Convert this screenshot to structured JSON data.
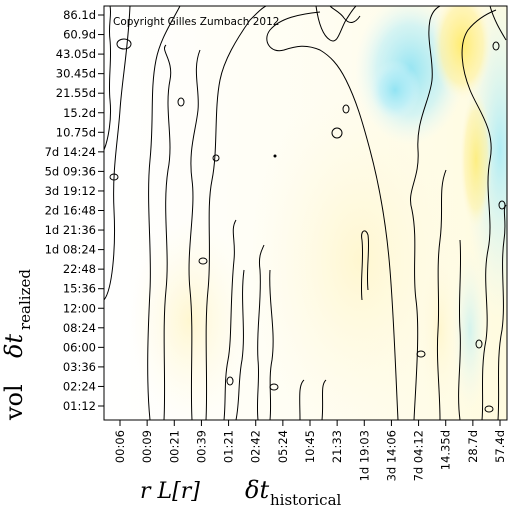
{
  "chart_data": {
    "type": "heatmap",
    "copyright": "Copyright Gilles Zumbach 2012",
    "y_ticks": [
      "86.1d",
      "60.9d",
      "43.05d",
      "30.45d",
      "21.55d",
      "15.2d",
      "10.75d",
      "7d 14:24",
      "5d 09:36",
      "3d 19:12",
      "2d 16:48",
      "1d 21:36",
      "1d 08:24",
      "22:48",
      "15:36",
      "12:00",
      "08:24",
      "06:00",
      "03:36",
      "02:24",
      "01:12"
    ],
    "x_ticks": [
      "00:06",
      "00:09",
      "00:21",
      "00:39",
      "01:21",
      "02:42",
      "05:24",
      "10:45",
      "21:33",
      "1d 19:03",
      "3d 14:06",
      "7d 04:12",
      "14.35d",
      "28.7d",
      "57.4d"
    ],
    "y_axis_title": {
      "main": "vol",
      "symbol": "δt",
      "subscript": "realized"
    },
    "x_axis_title": {
      "left": "r L[r]",
      "symbol": "δt",
      "subscript": "historical"
    },
    "colors": {
      "background": "#fffff4",
      "cream": "#fffbdc",
      "cyan": "#bff0f8",
      "deep_cyan": "#8fe3f3",
      "yellow": "#ffec7a",
      "contour": "#000000"
    }
  }
}
